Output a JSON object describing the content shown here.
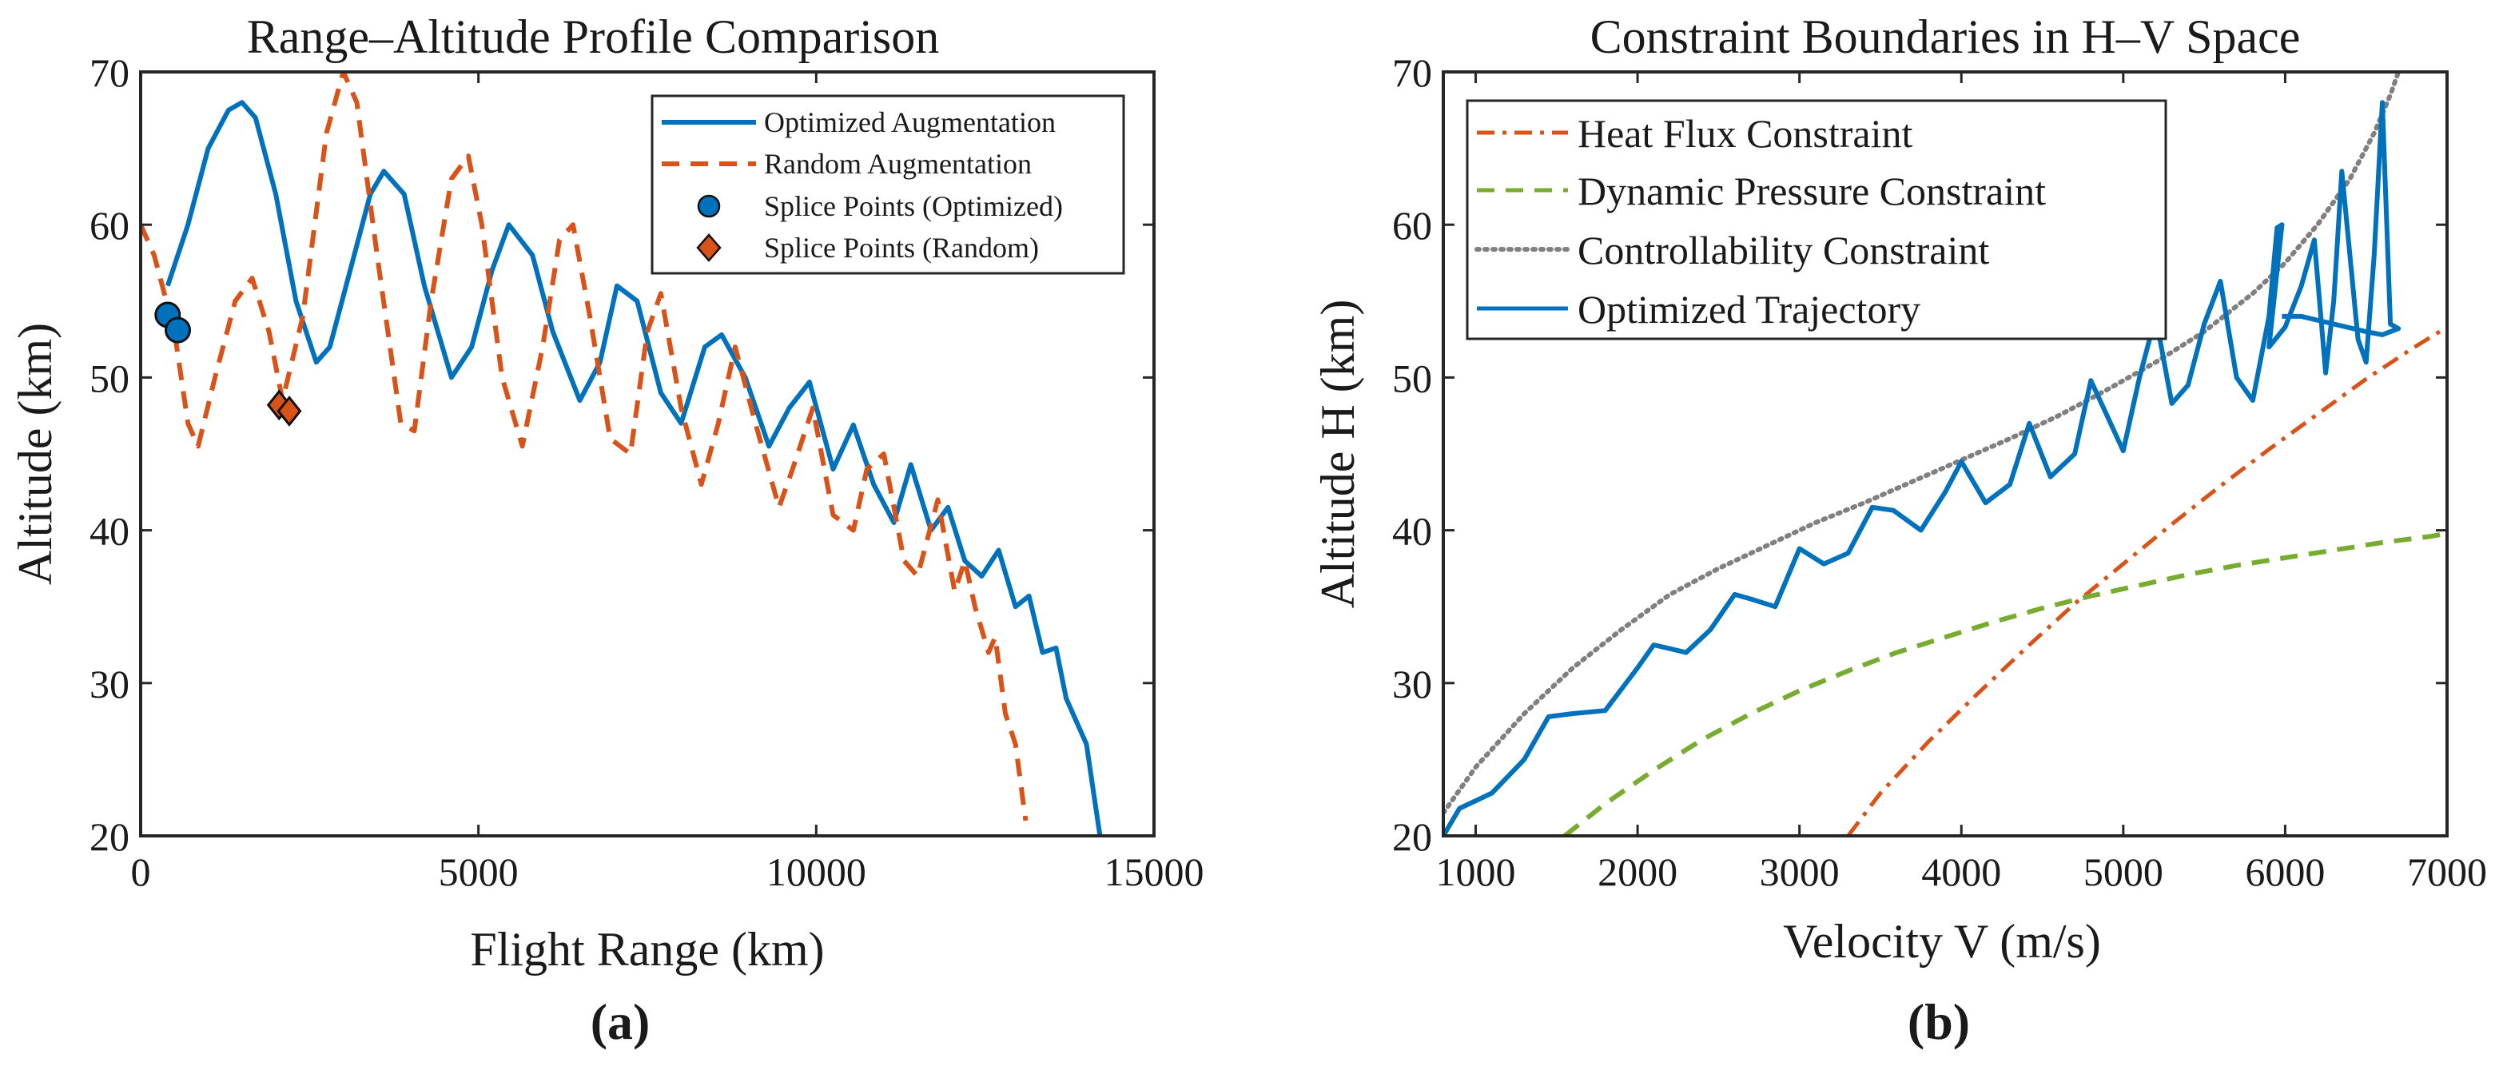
{
  "figure": {
    "panel_a_label": "(a)",
    "panel_b_label": "(b)"
  },
  "colors": {
    "optimized": "#0072BD",
    "random": "#D95319",
    "heat": "#D95319",
    "dynamic": "#77AC30",
    "control": "#808080",
    "axis": "#262626"
  },
  "chart_data": [
    {
      "type": "line",
      "title": "Range–Altitude Profile Comparison",
      "xlabel": "Flight Range (km)",
      "ylabel": "Altitude (km)",
      "xlim": [
        0,
        15000
      ],
      "ylim": [
        20,
        70
      ],
      "xticks": [
        "0",
        "5000",
        "10000",
        "15000"
      ],
      "yticks": [
        "20",
        "30",
        "40",
        "50",
        "60",
        "70"
      ],
      "xtick_values": [
        0,
        5000,
        10000,
        15000
      ],
      "ytick_values": [
        20,
        30,
        40,
        50,
        60,
        70
      ],
      "grid": false,
      "legend_position": "top-right",
      "legend": [
        "Optimized Augmentation",
        "Random Augmentation",
        "Splice Points (Optimized)",
        "Splice Points (Random)"
      ],
      "series": [
        {
          "name": "Optimized Augmentation",
          "style": "solid",
          "x": [
            400,
            700,
            1000,
            1300,
            1500,
            1700,
            2000,
            2300,
            2600,
            2800,
            3100,
            3400,
            3600,
            3900,
            4200,
            4600,
            4900,
            5200,
            5450,
            5800,
            6100,
            6500,
            6800,
            7050,
            7350,
            7700,
            8000,
            8350,
            8600,
            8950,
            9300,
            9600,
            9900,
            10250,
            10550,
            10850,
            11150,
            11400,
            11700,
            11950,
            12200,
            12450,
            12700,
            12950,
            13150,
            13350,
            13550,
            13700,
            13850,
            14000,
            14100,
            14200
          ],
          "y": [
            56,
            60,
            65,
            67.5,
            68,
            67,
            62,
            55,
            51,
            52,
            57,
            62,
            63.5,
            62,
            56,
            50,
            52,
            57,
            60,
            58,
            53,
            48.5,
            51,
            56,
            55,
            49,
            47,
            52,
            52.8,
            50,
            45.5,
            48,
            49.7,
            44,
            46.9,
            43,
            40.5,
            44.3,
            40,
            41.5,
            38,
            37,
            38.7,
            35,
            35.7,
            32,
            32.3,
            29,
            27.5,
            26,
            23,
            20
          ]
        },
        {
          "name": "Random Augmentation",
          "style": "dashed",
          "x": [
            0,
            200,
            500,
            700,
            850,
            1100,
            1400,
            1650,
            1900,
            2100,
            2400,
            2750,
            3000,
            3200,
            3500,
            3850,
            4050,
            4300,
            4600,
            4850,
            5050,
            5350,
            5650,
            5950,
            6200,
            6400,
            6650,
            6950,
            7250,
            7500,
            7700,
            8000,
            8300,
            8550,
            8800,
            9100,
            9450,
            9650,
            9950,
            10250,
            10550,
            10750,
            11000,
            11300,
            11500,
            11800,
            12050,
            12200,
            12350,
            12550,
            12650,
            12800,
            12950,
            13100
          ],
          "y": [
            60,
            58,
            53,
            47,
            45.5,
            50,
            55,
            56.5,
            53,
            48.5,
            54,
            66,
            70,
            68,
            58,
            47,
            46.5,
            55,
            63,
            64.5,
            60,
            50,
            45.5,
            52,
            59,
            60,
            54,
            46,
            45,
            53,
            55.5,
            48,
            43,
            47,
            52,
            47,
            41.5,
            44,
            48,
            41,
            40,
            44,
            45,
            38,
            37,
            42,
            36,
            38,
            35,
            32,
            33,
            28,
            26,
            21
          ]
        }
      ],
      "markers": [
        {
          "name": "Splice Points (Optimized)",
          "shape": "circle",
          "points": [
            [
              400,
              54.1
            ],
            [
              550,
              53.1
            ]
          ]
        },
        {
          "name": "Splice Points (Random)",
          "shape": "diamond",
          "points": [
            [
              2050,
              48.2
            ],
            [
              2200,
              47.8
            ]
          ]
        }
      ]
    },
    {
      "type": "line",
      "title": "Constraint Boundaries in H–V Space",
      "xlabel": "Velocity V (m/s)",
      "ylabel": "Altitude H (km)",
      "xlim": [
        800,
        7000
      ],
      "ylim": [
        20,
        70
      ],
      "xticks": [
        "1000",
        "2000",
        "3000",
        "4000",
        "5000",
        "6000",
        "7000"
      ],
      "yticks": [
        "20",
        "30",
        "40",
        "50",
        "60",
        "70"
      ],
      "xtick_values": [
        1000,
        2000,
        3000,
        4000,
        5000,
        6000,
        7000
      ],
      "ytick_values": [
        20,
        30,
        40,
        50,
        60,
        70
      ],
      "grid": false,
      "legend_position": "top-left",
      "legend": [
        "Heat Flux Constraint",
        "Dynamic Pressure Constraint",
        "Controllability Constraint",
        "Optimized Trajectory"
      ],
      "series": [
        {
          "name": "Heat Flux Constraint",
          "style": "dashdot",
          "x": [
            3300,
            3500,
            3800,
            4100,
            4400,
            4700,
            5000,
            5300,
            5600,
            5900,
            6200,
            6500,
            6800,
            7000
          ],
          "y": [
            20,
            22.8,
            26.2,
            29.3,
            32.3,
            35.2,
            37.8,
            40.4,
            42.9,
            45.3,
            47.6,
            49.9,
            52,
            53.3
          ]
        },
        {
          "name": "Dynamic Pressure Constraint",
          "style": "dashed",
          "x": [
            1550,
            1800,
            2100,
            2400,
            2700,
            3000,
            3300,
            3600,
            3900,
            4200,
            4500,
            4800,
            5100,
            5400,
            5700,
            6000,
            6300,
            6600,
            6900,
            7000
          ],
          "y": [
            20,
            22.1,
            24.3,
            26.3,
            28,
            29.5,
            30.8,
            32,
            33,
            34,
            34.9,
            35.7,
            36.4,
            37.1,
            37.7,
            38.2,
            38.7,
            39.2,
            39.6,
            39.8
          ]
        },
        {
          "name": "Controllability Constraint",
          "style": "dotted",
          "x": [
            800,
            1000,
            1300,
            1600,
            1900,
            2200,
            2500,
            2800,
            3100,
            3400,
            3700,
            4000,
            4300,
            4600,
            4900,
            5200,
            5500,
            5800,
            6000,
            6200,
            6400,
            6550,
            6650,
            6700
          ],
          "y": [
            21.5,
            24.5,
            28,
            31,
            33.5,
            35.8,
            37.5,
            39,
            40.5,
            41.8,
            43.2,
            44.6,
            46,
            47.5,
            49.2,
            51,
            53,
            55.5,
            57.5,
            60,
            63,
            66,
            68.5,
            70
          ]
        },
        {
          "name": "Optimized Trajectory",
          "style": "solid",
          "x": [
            800,
            900,
            1100,
            1300,
            1450,
            1600,
            1800,
            2000,
            2100,
            2300,
            2450,
            2600,
            2700,
            2850,
            3000,
            3150,
            3300,
            3450,
            3580,
            3750,
            3900,
            4000,
            4150,
            4300,
            4420,
            4550,
            4700,
            4800,
            4900,
            5000,
            5100,
            5200,
            5300,
            5400,
            5500,
            5600,
            5700,
            5800,
            5900,
            5950,
            5980,
            5900,
            6000,
            6100,
            6180,
            6250,
            6300,
            6350,
            6450,
            6500,
            6550,
            6600,
            6650,
            6700,
            6600,
            6500,
            6300,
            6100,
            5980
          ],
          "y": [
            20,
            21.8,
            22.8,
            25,
            27.8,
            28,
            28.2,
            31,
            32.5,
            32,
            33.5,
            35.8,
            35.5,
            35,
            38.8,
            37.8,
            38.5,
            41.5,
            41.3,
            40,
            42.5,
            44.5,
            41.8,
            43,
            47,
            43.5,
            45,
            49.8,
            47.5,
            45.2,
            50,
            54,
            48.3,
            49.5,
            53.5,
            56.3,
            50,
            48.5,
            54,
            59.8,
            60,
            52,
            53.3,
            56,
            59,
            50.3,
            55,
            63.5,
            52.5,
            51,
            58,
            68,
            53.5,
            53.2,
            52.8,
            53,
            53.5,
            54,
            54
          ]
        }
      ]
    }
  ]
}
